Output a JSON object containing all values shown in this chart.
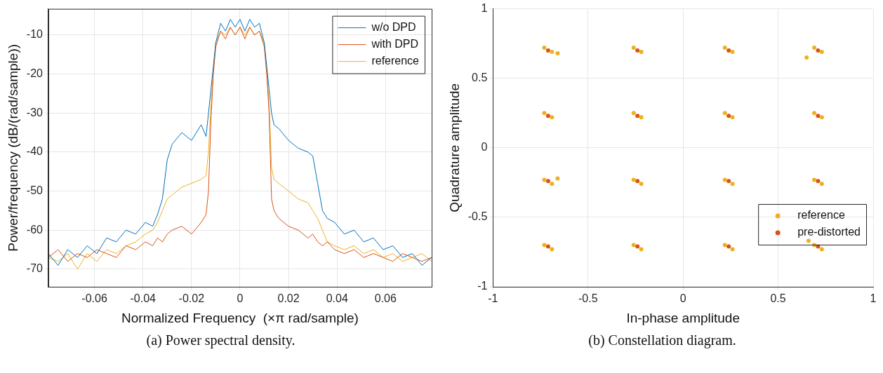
{
  "chart_data": [
    {
      "type": "line",
      "xlabel": "Normalized Frequency  (×π rad/sample)",
      "ylabel": "Power/frequency (dB/(rad/sample))",
      "annotations": [
        "(a) Power spectral density."
      ],
      "x": [
        -0.079,
        -0.075,
        -0.071,
        -0.067,
        -0.063,
        -0.059,
        -0.055,
        -0.051,
        -0.047,
        -0.043,
        -0.039,
        -0.036,
        -0.034,
        -0.032,
        -0.03,
        -0.028,
        -0.024,
        -0.02,
        -0.016,
        -0.014,
        -0.013,
        -0.012,
        -0.011,
        -0.01,
        -0.008,
        -0.006,
        -0.004,
        -0.002,
        0,
        0.002,
        0.004,
        0.006,
        0.008,
        0.01,
        0.011,
        0.012,
        0.013,
        0.014,
        0.016,
        0.02,
        0.024,
        0.028,
        0.03,
        0.032,
        0.034,
        0.036,
        0.039,
        0.043,
        0.047,
        0.051,
        0.055,
        0.059,
        0.063,
        0.067,
        0.071,
        0.075,
        0.079
      ],
      "series": [
        {
          "name": "w/o DPD",
          "color": "#0072bd",
          "values": [
            -66,
            -69,
            -65,
            -67,
            -64,
            -66,
            -62,
            -63,
            -60,
            -61,
            -58,
            -59,
            -56,
            -52,
            -42,
            -38,
            -35,
            -37,
            -33,
            -36,
            -30,
            -24,
            -18,
            -12,
            -7,
            -9,
            -6,
            -8,
            -6,
            -9,
            -6,
            -8,
            -7,
            -12,
            -18,
            -24,
            -30,
            -33,
            -34,
            -37,
            -39,
            -40,
            -41,
            -48,
            -55,
            -57,
            -58,
            -61,
            -60,
            -63,
            -62,
            -65,
            -64,
            -67,
            -66,
            -69,
            -67
          ]
        },
        {
          "name": "with DPD",
          "color": "#d95319",
          "values": [
            -67,
            -65,
            -68,
            -66,
            -67,
            -65,
            -66,
            -67,
            -64,
            -65,
            -63,
            -64,
            -62,
            -63,
            -61,
            -60,
            -59,
            -61,
            -58,
            -56,
            -50,
            -32,
            -20,
            -13,
            -9,
            -11,
            -8,
            -10,
            -8,
            -11,
            -8,
            -10,
            -9,
            -13,
            -20,
            -30,
            -52,
            -55,
            -57,
            -59,
            -60,
            -62,
            -61,
            -63,
            -64,
            -63,
            -65,
            -66,
            -65,
            -67,
            -66,
            -67,
            -68,
            -66,
            -67,
            -68,
            -67
          ]
        },
        {
          "name": "reference",
          "color": "#edb120",
          "values": [
            -67,
            -68,
            -66,
            -70,
            -66,
            -68,
            -65,
            -66,
            -64,
            -63,
            -61,
            -60,
            -58,
            -55,
            -52,
            -51,
            -49,
            -48,
            -47,
            -46,
            -40,
            -28,
            -19,
            -12,
            -9,
            -10,
            -8,
            -10,
            -8,
            -10,
            -8,
            -10,
            -9,
            -12,
            -19,
            -28,
            -44,
            -47,
            -48,
            -50,
            -52,
            -53,
            -55,
            -57,
            -60,
            -63,
            -64,
            -65,
            -64,
            -66,
            -65,
            -67,
            -66,
            -68,
            -67,
            -66,
            -68
          ]
        }
      ],
      "xlim": [
        -0.079,
        0.079
      ],
      "xticks": [
        -0.06,
        -0.04,
        -0.02,
        0,
        0.02,
        0.04,
        0.06
      ],
      "ylim": [
        -74.5,
        -3.3
      ],
      "yticks": [
        -70,
        -60,
        -50,
        -40,
        -30,
        -20,
        -10
      ],
      "grid": true,
      "legend": "top right"
    },
    {
      "type": "scatter",
      "xlabel": "In-phase amplitude",
      "ylabel": "Quadrature amplitude",
      "annotations": [
        "(b) Constellation diagram."
      ],
      "series": [
        {
          "name": "reference",
          "color": "#edb120",
          "x": [
            -0.69,
            -0.73,
            -0.22,
            -0.26,
            0.26,
            0.22,
            0.73,
            0.69,
            -0.69,
            -0.73,
            -0.22,
            -0.26,
            0.26,
            0.22,
            0.73,
            0.69,
            -0.69,
            -0.73,
            -0.22,
            -0.26,
            0.26,
            0.22,
            0.73,
            0.69,
            -0.69,
            -0.73,
            -0.22,
            -0.26,
            0.26,
            0.22,
            0.73,
            0.69,
            -0.66,
            0.65,
            -0.66,
            0.66
          ],
          "values": [
            0.69,
            0.72,
            0.69,
            0.72,
            0.69,
            0.72,
            0.69,
            0.72,
            0.22,
            0.25,
            0.22,
            0.25,
            0.22,
            0.25,
            0.22,
            0.25,
            -0.26,
            -0.23,
            -0.26,
            -0.23,
            -0.26,
            -0.23,
            -0.26,
            -0.23,
            -0.73,
            -0.7,
            -0.73,
            -0.7,
            -0.73,
            -0.7,
            -0.73,
            -0.7,
            0.68,
            0.65,
            -0.22,
            -0.67
          ]
        },
        {
          "name": "pre-distorted",
          "color": "#d95319",
          "x": [
            -0.71,
            -0.24,
            0.24,
            0.71,
            -0.71,
            -0.24,
            0.24,
            0.71,
            -0.71,
            -0.24,
            0.24,
            0.71,
            -0.71,
            -0.24,
            0.24,
            0.71
          ],
          "values": [
            0.7,
            0.7,
            0.7,
            0.7,
            0.23,
            0.23,
            0.23,
            0.23,
            -0.24,
            -0.24,
            -0.24,
            -0.24,
            -0.71,
            -0.71,
            -0.71,
            -0.71
          ]
        }
      ],
      "xlim": [
        -1,
        1
      ],
      "xticks": [
        -1,
        -0.5,
        0,
        0.5,
        1
      ],
      "ylim": [
        -1,
        1
      ],
      "yticks": [
        -1,
        -0.5,
        0,
        0.5,
        1
      ],
      "grid": true,
      "legend": "bottom right",
      "marker": "circle"
    }
  ]
}
